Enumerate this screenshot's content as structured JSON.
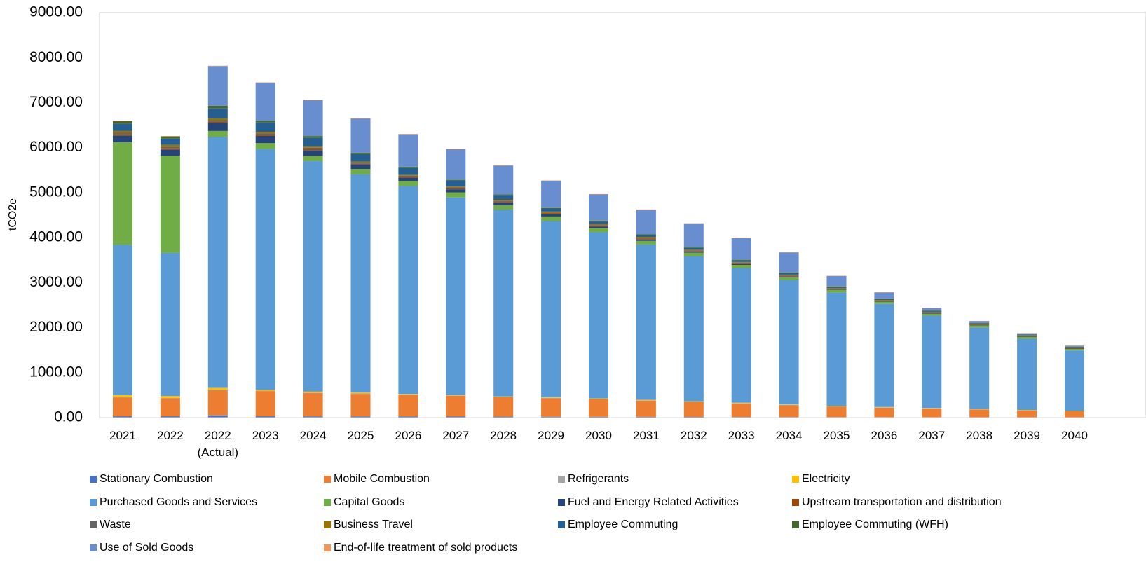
{
  "chart_data": {
    "type": "bar",
    "stacked": true,
    "title": "",
    "xlabel": "",
    "ylabel": "tCO2e",
    "ylim": [
      0,
      9000
    ],
    "yticks": [
      "0.00",
      "1000.00",
      "2000.00",
      "3000.00",
      "4000.00",
      "5000.00",
      "6000.00",
      "7000.00",
      "8000.00",
      "9000.00"
    ],
    "grid": false,
    "legend_position": "bottom",
    "categories": [
      [
        "2021"
      ],
      [
        "2022"
      ],
      [
        "2022",
        "(Actual)"
      ],
      [
        "2023"
      ],
      [
        "2024"
      ],
      [
        "2025"
      ],
      [
        "2026"
      ],
      [
        "2027"
      ],
      [
        "2028"
      ],
      [
        "2029"
      ],
      [
        "2030"
      ],
      [
        "2031"
      ],
      [
        "2032"
      ],
      [
        "2033"
      ],
      [
        "2034"
      ],
      [
        "2035"
      ],
      [
        "2036"
      ],
      [
        "2037"
      ],
      [
        "2038"
      ],
      [
        "2039"
      ],
      [
        "2040"
      ]
    ],
    "series": [
      {
        "name": "Stationary Combustion",
        "color": "#4472C4",
        "values": [
          30,
          30,
          50,
          30,
          28,
          27,
          26,
          24,
          22,
          20,
          19,
          17,
          16,
          14,
          13,
          11,
          10,
          9,
          8,
          7,
          6
        ]
      },
      {
        "name": "Mobile Combustion",
        "color": "#ED7D31",
        "values": [
          420,
          400,
          560,
          560,
          520,
          500,
          480,
          460,
          430,
          410,
          390,
          360,
          330,
          300,
          260,
          230,
          210,
          190,
          170,
          150,
          135
        ]
      },
      {
        "name": "Refrigerants",
        "color": "#A5A5A5",
        "values": [
          10,
          10,
          10,
          10,
          10,
          10,
          10,
          10,
          10,
          10,
          10,
          10,
          10,
          10,
          10,
          10,
          8,
          8,
          7,
          7,
          6
        ]
      },
      {
        "name": "Electricity",
        "color": "#FFC000",
        "values": [
          40,
          40,
          40,
          20,
          20,
          20,
          10,
          10,
          10,
          10,
          10,
          10,
          10,
          10,
          10,
          10,
          8,
          8,
          7,
          7,
          6
        ]
      },
      {
        "name": "Purchased Goods and Services",
        "color": "#5B9BD5",
        "values": [
          3340,
          3180,
          5580,
          5350,
          5120,
          4850,
          4620,
          4390,
          4150,
          3920,
          3690,
          3450,
          3220,
          2990,
          2760,
          2520,
          2290,
          2050,
          1810,
          1580,
          1340
        ]
      },
      {
        "name": "Capital Goods",
        "color": "#70AD47",
        "values": [
          2280,
          2160,
          130,
          130,
          120,
          120,
          110,
          110,
          100,
          100,
          90,
          80,
          80,
          70,
          60,
          60,
          50,
          40,
          40,
          40,
          30
        ]
      },
      {
        "name": "Fuel and Energy Related Activities",
        "color": "#264478",
        "values": [
          150,
          140,
          180,
          160,
          120,
          100,
          80,
          70,
          60,
          50,
          40,
          30,
          20,
          20,
          20,
          10,
          10,
          10,
          10,
          10,
          10
        ]
      },
      {
        "name": "Upstream transportation and distribution",
        "color": "#9E480E",
        "values": [
          30,
          30,
          30,
          30,
          30,
          20,
          20,
          20,
          20,
          20,
          20,
          20,
          15,
          15,
          15,
          10,
          10,
          10,
          10,
          8,
          8
        ]
      },
      {
        "name": "Waste",
        "color": "#636363",
        "values": [
          30,
          30,
          30,
          30,
          30,
          20,
          20,
          20,
          20,
          20,
          20,
          20,
          15,
          15,
          15,
          10,
          10,
          10,
          10,
          8,
          8
        ]
      },
      {
        "name": "Business Travel",
        "color": "#997300",
        "values": [
          40,
          40,
          40,
          30,
          30,
          20,
          20,
          20,
          20,
          20,
          20,
          20,
          15,
          15,
          15,
          10,
          10,
          10,
          10,
          8,
          8
        ]
      },
      {
        "name": "Employee Commuting",
        "color": "#255E91",
        "values": [
          160,
          140,
          220,
          210,
          190,
          170,
          160,
          130,
          100,
          60,
          50,
          40,
          40,
          30,
          30,
          20,
          20,
          20,
          15,
          10,
          10
        ]
      },
      {
        "name": "Employee Commuting (WFH)",
        "color": "#43682B",
        "values": [
          60,
          50,
          60,
          40,
          40,
          30,
          20,
          20,
          20,
          20,
          20,
          20,
          20,
          20,
          20,
          15,
          15,
          15,
          10,
          10,
          10
        ]
      },
      {
        "name": "Use of Sold Goods",
        "color": "#698ED0",
        "values": [
          0,
          0,
          880,
          840,
          800,
          760,
          720,
          680,
          640,
          600,
          580,
          540,
          520,
          480,
          440,
          230,
          130,
          60,
          40,
          30,
          20
        ]
      },
      {
        "name": "End-of-life treatment of sold products",
        "color": "#F1975A",
        "values": [
          10,
          10,
          10,
          10,
          10,
          10,
          10,
          10,
          10,
          10,
          10,
          10,
          8,
          8,
          8,
          6,
          5,
          4,
          3,
          3,
          3
        ]
      }
    ]
  }
}
